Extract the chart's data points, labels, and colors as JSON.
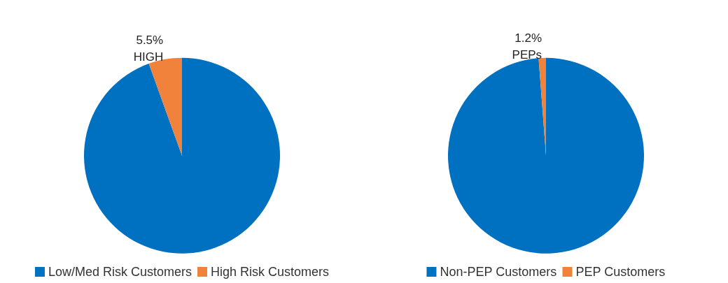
{
  "chart_data": [
    {
      "type": "pie",
      "categories": [
        "Low/Med Risk Customers",
        "High Risk Customers"
      ],
      "values": [
        94.5,
        5.5
      ],
      "colors": [
        "#0070c0",
        "#f0823c"
      ],
      "value_labels": [
        null,
        "5.5%\nHIGH"
      ],
      "legend": "bottom"
    },
    {
      "type": "pie",
      "categories": [
        "Non-PEP Customers",
        "PEP Customers"
      ],
      "values": [
        98.8,
        1.2
      ],
      "colors": [
        "#0070c0",
        "#f0823c"
      ],
      "value_labels": [
        null,
        "1.2%\nPEPs"
      ],
      "legend": "bottom"
    }
  ]
}
